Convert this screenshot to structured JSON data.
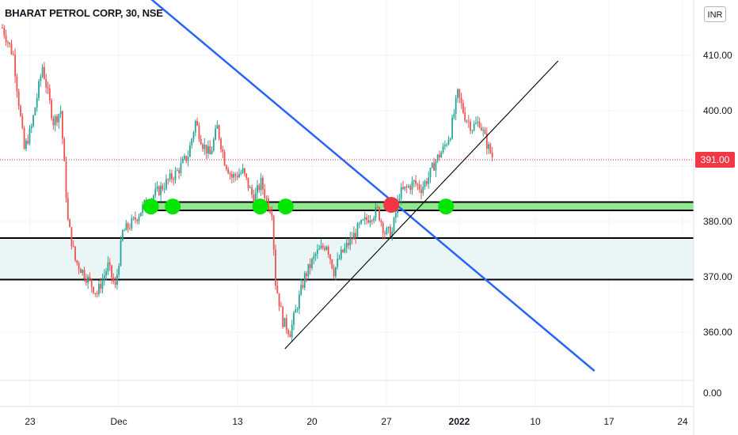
{
  "header": {
    "title": "BHARAT PETROL CORP, 30, NSE",
    "currency": "INR"
  },
  "price_badge": "391.00",
  "colors": {
    "up": "#26a69a",
    "down": "#ef5350",
    "trendline_blue": "#2962ff",
    "green_marker": "#00e600",
    "red_marker": "#f23645",
    "zone_fill": "#e9f6f5"
  },
  "chart_data": {
    "type": "candlestick",
    "symbol": "BHARAT PETROL CORP",
    "interval": "30",
    "exchange": "NSE",
    "last_price": 391.0,
    "y_ticks": [
      "410.00",
      "400.00",
      "380.00",
      "370.00",
      "360.00",
      "0.00"
    ],
    "x_ticks": [
      {
        "label": "23",
        "bold": false
      },
      {
        "label": "Dec",
        "bold": false
      },
      {
        "label": "13",
        "bold": false
      },
      {
        "label": "20",
        "bold": false
      },
      {
        "label": "27",
        "bold": false
      },
      {
        "label": "2022",
        "bold": true
      },
      {
        "label": "10",
        "bold": false
      },
      {
        "label": "17",
        "bold": false
      },
      {
        "label": "24",
        "bold": false
      }
    ],
    "price_path": [
      {
        "t": 0,
        "p": 415
      },
      {
        "t": 3,
        "p": 410
      },
      {
        "t": 6,
        "p": 393
      },
      {
        "t": 8,
        "p": 397
      },
      {
        "t": 11,
        "p": 408
      },
      {
        "t": 14,
        "p": 398
      },
      {
        "t": 16,
        "p": 400
      },
      {
        "t": 18,
        "p": 380
      },
      {
        "t": 20,
        "p": 373
      },
      {
        "t": 23,
        "p": 370
      },
      {
        "t": 26,
        "p": 367
      },
      {
        "t": 29,
        "p": 372
      },
      {
        "t": 31,
        "p": 368
      },
      {
        "t": 33,
        "p": 378
      },
      {
        "t": 36,
        "p": 380
      },
      {
        "t": 39,
        "p": 383
      },
      {
        "t": 42,
        "p": 385
      },
      {
        "t": 45,
        "p": 387
      },
      {
        "t": 48,
        "p": 389
      },
      {
        "t": 51,
        "p": 392
      },
      {
        "t": 53,
        "p": 398
      },
      {
        "t": 55,
        "p": 394
      },
      {
        "t": 57,
        "p": 392
      },
      {
        "t": 59,
        "p": 397
      },
      {
        "t": 61,
        "p": 391
      },
      {
        "t": 63,
        "p": 388
      },
      {
        "t": 66,
        "p": 389
      },
      {
        "t": 69,
        "p": 384
      },
      {
        "t": 71,
        "p": 387
      },
      {
        "t": 73,
        "p": 383
      },
      {
        "t": 74,
        "p": 382
      },
      {
        "t": 75,
        "p": 369
      },
      {
        "t": 77,
        "p": 362
      },
      {
        "t": 79,
        "p": 360
      },
      {
        "t": 81,
        "p": 365
      },
      {
        "t": 83,
        "p": 370
      },
      {
        "t": 86,
        "p": 374
      },
      {
        "t": 89,
        "p": 376
      },
      {
        "t": 91,
        "p": 371
      },
      {
        "t": 93,
        "p": 374
      },
      {
        "t": 96,
        "p": 377
      },
      {
        "t": 98,
        "p": 379
      },
      {
        "t": 101,
        "p": 381
      },
      {
        "t": 103,
        "p": 382
      },
      {
        "t": 105,
        "p": 378
      },
      {
        "t": 107,
        "p": 378
      },
      {
        "t": 109,
        "p": 385
      },
      {
        "t": 111,
        "p": 386
      },
      {
        "t": 113,
        "p": 387
      },
      {
        "t": 115,
        "p": 386
      },
      {
        "t": 117,
        "p": 388
      },
      {
        "t": 119,
        "p": 391
      },
      {
        "t": 121,
        "p": 393
      },
      {
        "t": 123,
        "p": 396
      },
      {
        "t": 125,
        "p": 403
      },
      {
        "t": 127,
        "p": 399
      },
      {
        "t": 129,
        "p": 397
      },
      {
        "t": 131,
        "p": 398
      },
      {
        "t": 133,
        "p": 394
      },
      {
        "t": 135,
        "p": 391
      }
    ],
    "horizontal_levels": [
      {
        "price": 383.5,
        "style": "support-zone-top"
      },
      {
        "price": 382.0,
        "style": "support-zone-bottom"
      },
      {
        "price": 377.0,
        "style": "line"
      },
      {
        "price": 369.5,
        "style": "line"
      }
    ],
    "shaded_zone": [
      369.5,
      377.0
    ],
    "trendlines": [
      {
        "color": "blue",
        "from": {
          "t": 18,
          "p": 433
        },
        "to": {
          "t": 163,
          "p": 353
        }
      },
      {
        "color": "black",
        "from": {
          "t": 78,
          "p": 357
        },
        "to": {
          "t": 153,
          "p": 409
        }
      }
    ],
    "markers": [
      {
        "t": 36,
        "p": 382.7,
        "color": "green"
      },
      {
        "t": 42,
        "p": 382.7,
        "color": "green"
      },
      {
        "t": 66,
        "p": 382.7,
        "color": "green"
      },
      {
        "t": 73,
        "p": 382.7,
        "color": "green"
      },
      {
        "t": 102,
        "p": 383.0,
        "color": "red"
      },
      {
        "t": 117,
        "p": 382.7,
        "color": "green"
      }
    ]
  }
}
